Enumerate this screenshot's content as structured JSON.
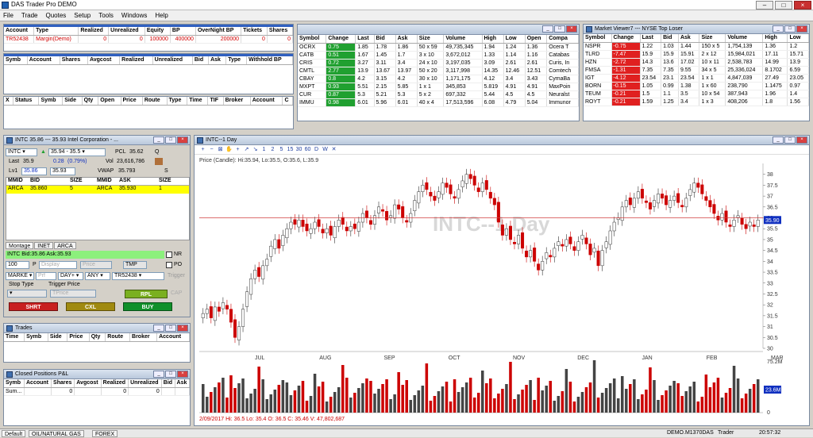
{
  "app": {
    "title": "DAS Trader Pro DEMO"
  },
  "menu": [
    "File",
    "Trade",
    "Quotes",
    "Setup",
    "Tools",
    "Windows",
    "Help"
  ],
  "account": {
    "headers": [
      "Account",
      "Type",
      "Realized",
      "Unrealized",
      "Equity",
      "BP",
      "OverNight BP",
      "Tickets",
      "Shares"
    ],
    "row": [
      "TR52438",
      "Margin(Demo)",
      "0",
      "0",
      "100000",
      "400000",
      "200000",
      "0",
      "0"
    ]
  },
  "positions": {
    "headers": [
      "Symb",
      "Account",
      "Shares",
      "Avgcost",
      "Realized",
      "Unrealized",
      "Bid",
      "Ask",
      "Type",
      "Withhold BP"
    ]
  },
  "orders": {
    "headers": [
      "X",
      "Status",
      "Symb",
      "Side",
      "Qty",
      "Open",
      "Price",
      "Route",
      "Type",
      "Time",
      "TIF",
      "Broker",
      "Account",
      "C"
    ]
  },
  "mv1": {
    "headers": [
      "Symbol",
      "Change",
      "Last",
      "Bid",
      "Ask",
      "Size",
      "Volume",
      "High",
      "Low",
      "Open",
      "Compa"
    ],
    "rows": [
      [
        "OCRX",
        "0.75",
        "1.85",
        "1.78",
        "1.86",
        "50 x 59",
        "49,735,345",
        "1.94",
        "1.24",
        "1.36",
        "Ocera T"
      ],
      [
        "CATB",
        "0.51",
        "1.67",
        "1.45",
        "1.7",
        "3 x 10",
        "3,672,012",
        "1.33",
        "1.14",
        "1.16",
        "Catabas"
      ],
      [
        "CRIS",
        "0.72",
        "3.27",
        "3.11",
        "3.4",
        "24 x 10",
        "3,197,035",
        "3.09",
        "2.61",
        "2.61",
        "Curis, In"
      ],
      [
        "CMTL",
        "2.77",
        "13.9",
        "13.67",
        "13.97",
        "50 x 20",
        "3,117,998",
        "14.35",
        "12.46",
        "12.51",
        "Comtech"
      ],
      [
        "CBAY",
        "0.8",
        "4.2",
        "3.15",
        "4.2",
        "30 x 10",
        "1,171,175",
        "4.12",
        "3.4",
        "3.43",
        "CymaBa"
      ],
      [
        "MXPT",
        "0.93",
        "5.51",
        "2.15",
        "5.85",
        "1 x 1",
        "345,853",
        "5.819",
        "4.91",
        "4.91",
        "MaxPoin"
      ],
      [
        "CUR",
        "0.87",
        "5.3",
        "5.21",
        "5.3",
        "5 x 2",
        "697,332",
        "5.44",
        "4.5",
        "4.5",
        "Neuralst"
      ],
      [
        "IMMU",
        "0.98",
        "6.01",
        "5.96",
        "6.01",
        "40 x 4",
        "17,513,596",
        "6.08",
        "4.79",
        "5.04",
        "Immunor"
      ]
    ]
  },
  "mv2": {
    "title": "Market Viewer7 --- NYSE Top Loser",
    "headers": [
      "Symbol",
      "Change",
      "Last",
      "Bid",
      "Ask",
      "Size",
      "Volume",
      "High",
      "Low"
    ],
    "rows": [
      [
        "NSPR",
        "-0.75",
        "1.22",
        "1.03",
        "1.44",
        "150 x 5",
        "1,754,139",
        "1.36",
        "1.2"
      ],
      [
        "TLRD",
        "-7.47",
        "15.9",
        "15.9",
        "15.91",
        "2 x 12",
        "15,984,021",
        "17.11",
        "15.71"
      ],
      [
        "HZN",
        "-2.72",
        "14.3",
        "13.6",
        "17.02",
        "10 x 11",
        "2,538,783",
        "14.99",
        "13.9"
      ],
      [
        "FMSA",
        "-1.31",
        "7.35",
        "7.35",
        "9.55",
        "34 x 5",
        "25,336,024",
        "8.1702",
        "6.59"
      ],
      [
        "IGT",
        "-4.12",
        "23.54",
        "23.1",
        "23.54",
        "1 x 1",
        "4,847,039",
        "27.49",
        "23.05"
      ],
      [
        "BORN",
        "-0.15",
        "1.05",
        "0.99",
        "1.38",
        "1 x 60",
        "238,790",
        "1.1475",
        "0.97"
      ],
      [
        "TEUM",
        "-0.21",
        "1.5",
        "1.1",
        "3.5",
        "10 x 54",
        "387,943",
        "1.96",
        "1.4"
      ],
      [
        "ROYT",
        "-0.21",
        "1.59",
        "1.25",
        "3.4",
        "1 x 3",
        "408,206",
        "1.8",
        "1.56"
      ]
    ]
  },
  "montage": {
    "title": "INTC   35.86 --- 35.93   Intel Corporation - ...",
    "symbol": "INTC",
    "range": "35.94 - 35.5",
    "pcl_label": "PCL",
    "pcl": "35.62",
    "q": "Q",
    "last_label": "Last",
    "last": "35.9",
    "chg": "0.28",
    "chg_pct": "(0.79%)",
    "vol_label": "Vol",
    "vol": "23,616,786",
    "lv1_label": "Lv1",
    "lv1_bid": "35.86",
    "lv1_ask": "35.93",
    "vwap_label": "VWAP",
    "vwap": "35.793",
    "s": "S",
    "book_headers": [
      "MMID",
      "BID",
      "SIZE",
      "MMID",
      "ASK",
      "SIZE"
    ],
    "bid_row": [
      "ARCA",
      "35.860",
      "5"
    ],
    "ask_row": [
      "ARCA",
      "35.930",
      "1"
    ],
    "tabs": [
      "Montage",
      "INET",
      "ARCA"
    ],
    "status": "INTC Bid:35.86 Ask:35.93",
    "qty": "100",
    "p_label": "P",
    "display_ph": "Display",
    "price_ph": "Price",
    "tmp": "TMP",
    "nr": "NR",
    "po": "PO",
    "order_type": "MARKE",
    "tif": "DAY+",
    "route": "ANY",
    "acct": "TR52438",
    "trigger_btn": "Trigger",
    "stop_type": "Stop Type",
    "trigger_price": "Trigger Price",
    "tprice_ph": "TPrice",
    "rpl": "RPL",
    "cap": "CAP",
    "short": "SHRT",
    "cxl": "CXL",
    "buy": "BUY",
    "prf_ph": "Prf"
  },
  "trades": {
    "title": "Trades",
    "headers": [
      "Time",
      "Symb",
      "Side",
      "Price",
      "Qty",
      "Route",
      "Broker",
      "Account"
    ]
  },
  "closed": {
    "title": "Closed Positions P&L",
    "headers": [
      "Symb",
      "Account",
      "Shares",
      "Avgcost",
      "Realized",
      "Unrealized",
      "Bid",
      "Ask"
    ],
    "row": [
      "Sum...",
      "",
      "0",
      "",
      "0",
      "0",
      "",
      ""
    ]
  },
  "chart_window": {
    "title": "INTC--1 Day",
    "price_label": "Price (Candle): Hi:35.94, Lo:35.5, O:35.6, L:35.9",
    "watermark": "INTC--1 Day",
    "footer": "2/09/2017  Hi: 36.5  Lo: 35.4  O: 36.5  C: 35.46  V: 47,802,687",
    "current_price": "35.90",
    "vol_max": "75.2M",
    "vol_cur": "23.6M",
    "vol_zero": "0",
    "toolbar": [
      "+",
      "−",
      "⊠",
      "✋",
      "+",
      "↗",
      "↘",
      "1",
      "2",
      "5",
      "15",
      "30",
      "60",
      "D",
      "W",
      "✕"
    ]
  },
  "chart_data": {
    "type": "candlestick",
    "title": "INTC--1 Day",
    "ylim": [
      30,
      38.5
    ],
    "yticks": [
      "38",
      "37.5",
      "37",
      "36.5",
      "36",
      "35.5",
      "35",
      "34.5",
      "34",
      "33.5",
      "33",
      "32.5",
      "32",
      "31.5",
      "31",
      "30.5",
      "30"
    ],
    "xticks": [
      "JUL",
      "AUG",
      "SEP",
      "OCT",
      "NOV",
      "DEC",
      "JAN",
      "FEB",
      "MAR"
    ],
    "close_series": [
      31.6,
      31.8,
      31.4,
      31.9,
      31.7,
      32.1,
      31.8,
      31.2,
      30.5,
      31.0,
      31.8,
      32.6,
      33.2,
      33.6,
      33.3,
      33.8,
      34.1,
      34.7,
      35.0,
      34.6,
      35.2,
      35.5,
      35.8,
      35.7,
      35.9,
      35.6,
      35.4,
      35.5,
      35.8,
      35.6,
      35.3,
      35.5,
      35.2,
      35.6,
      35.9,
      35.7,
      35.4,
      35.6,
      35.5,
      35.8,
      36.2,
      36.0,
      35.7,
      36.1,
      36.5,
      36.3,
      35.9,
      36.1,
      36.6,
      36.4,
      36.0,
      35.8,
      36.2,
      36.8,
      37.2,
      37.5,
      37.3,
      37.0,
      36.8,
      37.2,
      37.6,
      37.4,
      37.1,
      36.9,
      37.3,
      37.7,
      38.0,
      37.8,
      37.5,
      37.2,
      37.6,
      37.3,
      36.9,
      36.6,
      35.8,
      35.2,
      35.5,
      35.0,
      34.8,
      35.2,
      34.6,
      34.2,
      34.5,
      34.0,
      33.6,
      34.0,
      34.4,
      34.2,
      34.6,
      34.9,
      34.7,
      35.0,
      34.8,
      34.5,
      34.9,
      35.2,
      34.8,
      34.3,
      34.6,
      33.8,
      34.5,
      34.9,
      35.4,
      35.8,
      36.0,
      36.5,
      36.8,
      36.6,
      36.9,
      37.2,
      36.9,
      36.7,
      36.4,
      36.8,
      37.1,
      36.9,
      36.6,
      36.8,
      37.0,
      36.7,
      36.5,
      36.9,
      37.3,
      37.6,
      37.4,
      37.1,
      36.8,
      36.5,
      36.2,
      35.9,
      36.2,
      35.8,
      35.6,
      35.9,
      36.1,
      35.7,
      35.5,
      35.8,
      35.6,
      35.9
    ],
    "volume_max_label": "75.2M",
    "current": 35.9,
    "current_label": "35.90",
    "hline": 36.0
  }
}
